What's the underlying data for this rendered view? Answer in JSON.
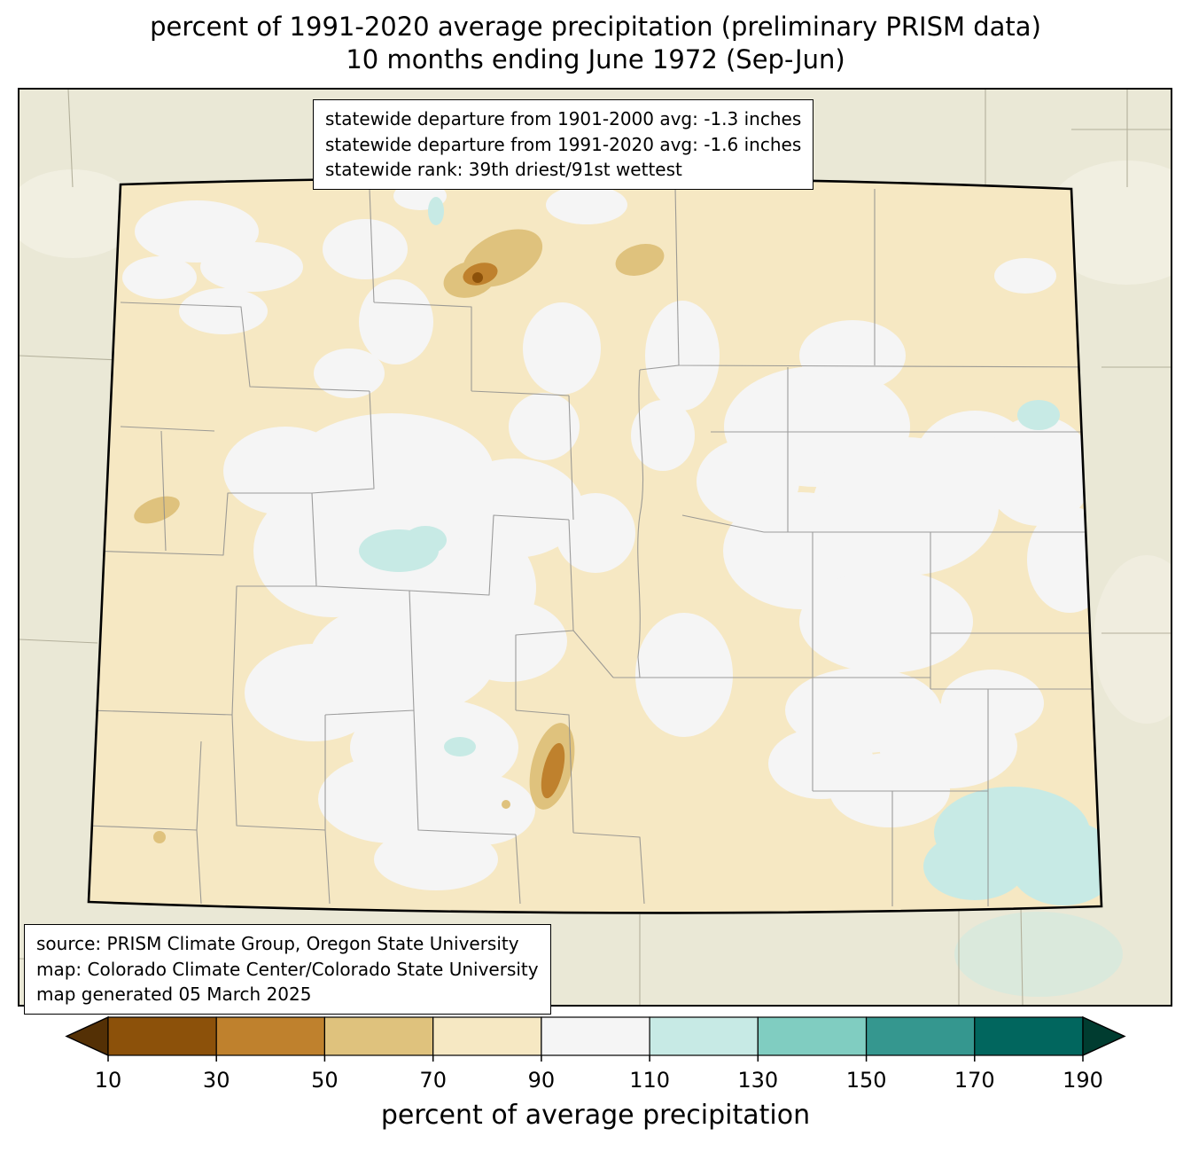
{
  "title": {
    "line1": "percent of 1991-2020 average precipitation (preliminary PRISM data)",
    "line2": "10 months ending June 1972 (Sep-Jun)"
  },
  "stats_box": {
    "lines": [
      "statewide departure from 1901-2000 avg: -1.3 inches",
      "statewide departure from 1991-2020 avg: -1.6 inches",
      "statewide rank: 39th driest/91st wettest"
    ]
  },
  "source_box": {
    "lines": [
      "source: PRISM Climate Group, Oregon State University",
      "map: Colorado Climate Center/Colorado State University",
      "map generated 05 March 2025"
    ]
  },
  "colorbar": {
    "label": "percent of average precipitation",
    "ticks": [
      "10",
      "30",
      "50",
      "70",
      "90",
      "110",
      "130",
      "150",
      "170",
      "190"
    ],
    "arrow_left": "#543005",
    "colors": [
      "#8c510a",
      "#bf812d",
      "#dfc27d",
      "#f6e8c3",
      "#f5f5f5",
      "#c7eae5",
      "#80cdc1",
      "#35978f",
      "#01665e"
    ],
    "arrow_right": "#003c30"
  },
  "map": {
    "outside_fill": "#eae8d6",
    "state_base_fill": "#f6e8c3",
    "county_line_color": "#8c8c8c",
    "neighbor_line_color": "#b3b09b",
    "state_border_color": "#000000"
  },
  "chart_data": {
    "type": "heatmap",
    "subtype": "choropleth-map",
    "region": "Colorado (PRISM grid, county boundaries shown)",
    "variable": "percent of 1991-2020 average precipitation",
    "period": "10 months ending June 1972 (Sep-Jun)",
    "statewide_departure_from_1901_2000_avg_inches": -1.3,
    "statewide_departure_from_1991_2020_avg_inches": -1.6,
    "statewide_rank": "39th driest/91st wettest",
    "legend_bin_edges": [
      10,
      30,
      50,
      70,
      90,
      110,
      130,
      150,
      170,
      190
    ],
    "legend_units": "percent of average precipitation",
    "dominant_values": "mostly 70-90% statewide; 90-110% over central mountains and east-central plains; local 30-70% pockets (north-central, west-central, south-central); 110-130% pockets in far southeast corner and scattered small spots"
  }
}
